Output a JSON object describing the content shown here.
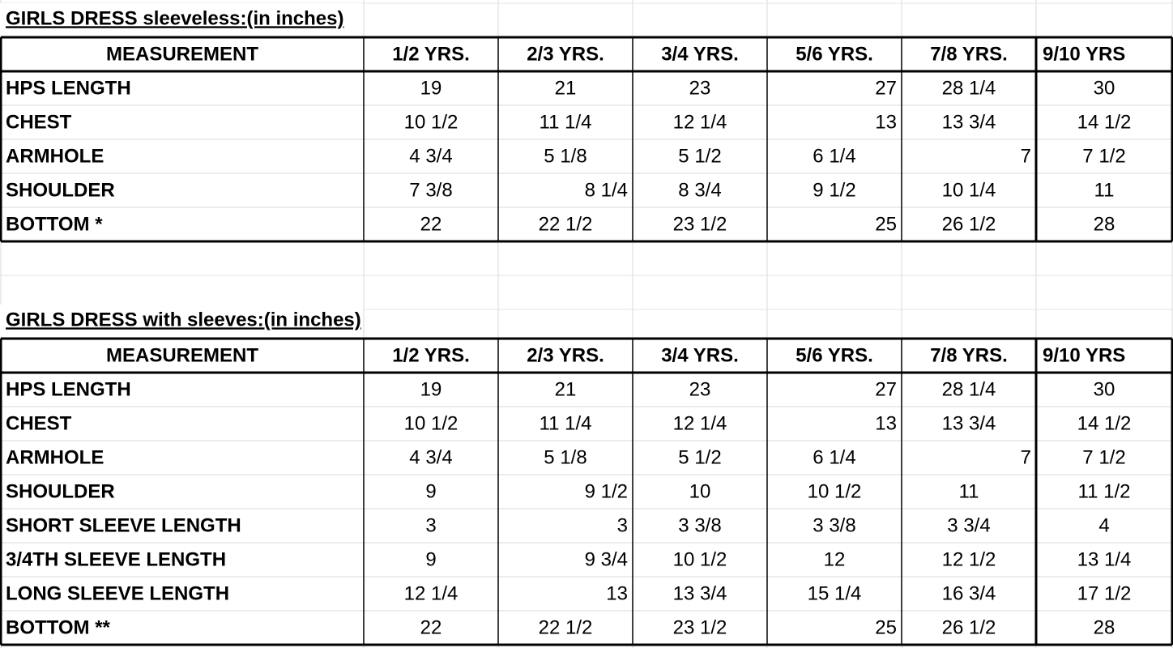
{
  "tables": [
    {
      "title": "GIRLS  DRESS  sleeveless:(in inches)",
      "header": [
        "MEASUREMENT",
        "1/2 YRS.",
        "2/3 YRS.",
        "3/4 YRS.",
        "5/6 YRS.",
        "7/8 YRS.",
        "9/10 YRS"
      ],
      "rows": [
        [
          "HPS LENGTH",
          "19",
          "21",
          "23",
          "27",
          "28 1/4",
          "30"
        ],
        [
          "CHEST",
          "10 1/2",
          "11 1/4",
          "12 1/4",
          "13",
          "13 3/4",
          "14 1/2"
        ],
        [
          "ARMHOLE",
          "4 3/4",
          "5 1/8",
          "5 1/2",
          "6 1/4",
          "7",
          "7 1/2"
        ],
        [
          "SHOULDER",
          "7 3/8",
          "8 1/4",
          "8 3/4",
          "9 1/2",
          "10 1/4",
          "11"
        ],
        [
          "BOTTOM *",
          "22",
          "22 1/2",
          "23 1/2",
          "25",
          "26 1/2",
          "28"
        ]
      ]
    },
    {
      "title": "GIRLS  DRESS with sleeves:(in inches)",
      "header": [
        "MEASUREMENT",
        "1/2 YRS.",
        "2/3 YRS.",
        "3/4 YRS.",
        "5/6 YRS.",
        "7/8 YRS.",
        "9/10 YRS"
      ],
      "rows": [
        [
          "HPS LENGTH",
          "19",
          "21",
          "23",
          "27",
          "28 1/4",
          "30"
        ],
        [
          "CHEST",
          "10 1/2",
          "11 1/4",
          "12 1/4",
          "13",
          "13 3/4",
          "14 1/2"
        ],
        [
          "ARMHOLE",
          "4 3/4",
          "5 1/8",
          "5 1/2",
          "6 1/4",
          "7",
          "7 1/2"
        ],
        [
          "SHOULDER",
          "9",
          "9 1/2",
          "10",
          "10 1/2",
          "11",
          "11 1/2"
        ],
        [
          "SHORT SLEEVE LENGTH",
          "3",
          "3",
          "3 3/8",
          "3 3/8",
          "3 3/4",
          "4"
        ],
        [
          "3/4TH SLEEVE LENGTH",
          "9",
          "9 3/4",
          "10 1/2",
          "12",
          "12 1/2",
          "13 1/4"
        ],
        [
          "LONG SLEEVE LENGTH",
          "12 1/4",
          "13",
          "13 3/4",
          "15 1/4",
          "16 3/4",
          "17 1/2"
        ],
        [
          "BOTTOM **",
          "22",
          "22 1/2",
          "23 1/2",
          "25",
          "26 1/2",
          "28"
        ]
      ]
    }
  ]
}
